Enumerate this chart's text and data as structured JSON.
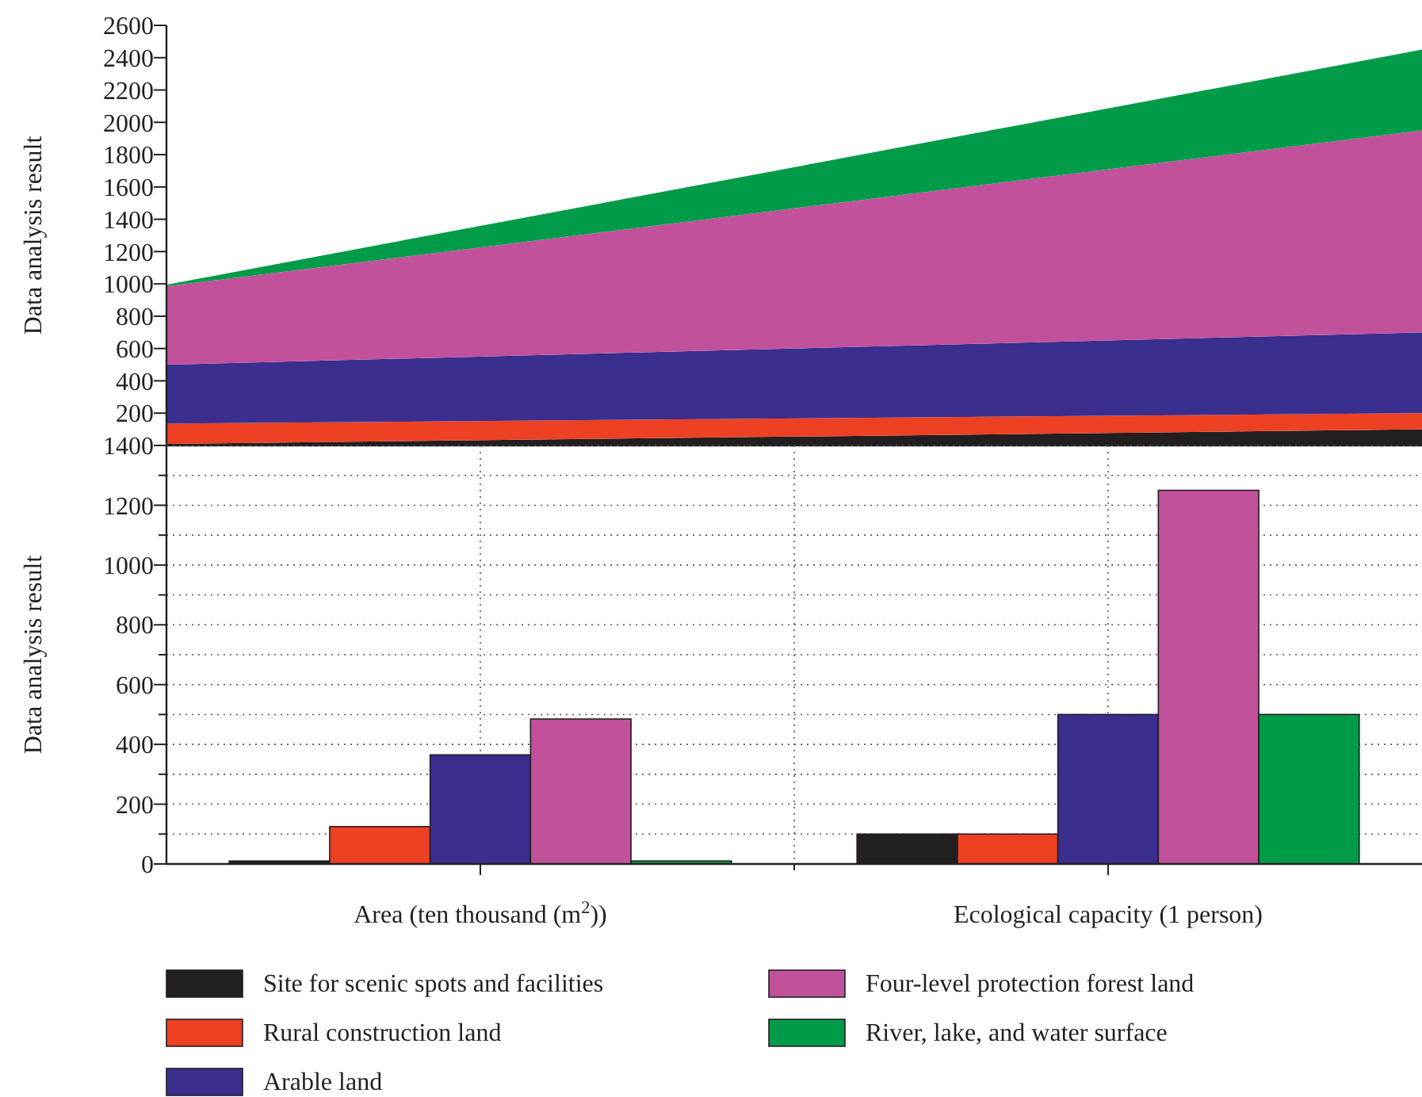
{
  "chart_data": [
    {
      "type": "area",
      "stacked": true,
      "ylabel": "Data analysis result",
      "categories": [
        null,
        null
      ],
      "ylim": [
        0,
        2600
      ],
      "tick_labels": "y",
      "yticks": [
        200,
        400,
        600,
        800,
        1000,
        1200,
        1400,
        1600,
        1800,
        2000,
        2200,
        2400,
        2600
      ],
      "series": [
        {
          "color": "#231f20",
          "values": [
            10,
            100
          ]
        },
        {
          "color": "#ee4023",
          "values": [
            125,
            100
          ]
        },
        {
          "color": "#3a2e8f",
          "values": [
            365,
            500
          ]
        },
        {
          "color": "#c2519b",
          "values": [
            485,
            1250
          ]
        },
        {
          "color": "#009b48",
          "values": [
            10,
            500
          ]
        }
      ]
    },
    {
      "type": "bar",
      "ylabel": "Data analysis result",
      "categories": [
        "Area (ten thousand (m$^{2}$))",
        "Ecological capacity (1 person)"
      ],
      "ylim": [
        0,
        1400
      ],
      "grid": true,
      "legend": "bottom",
      "yticks": [
        0,
        {
          "value": 100,
          "label": null
        },
        200,
        {
          "value": 300,
          "label": null
        },
        400,
        {
          "value": 500,
          "label": null
        },
        600,
        {
          "value": 700,
          "label": null
        },
        800,
        {
          "value": 900,
          "label": null
        },
        1000,
        {
          "value": 1100,
          "label": null
        },
        1200,
        {
          "value": 1300,
          "label": null
        },
        1400
      ],
      "series": [
        {
          "name": "Site for scenic spots and facilities",
          "color": "#231f20",
          "values": [
            10,
            100
          ]
        },
        {
          "name": "Rural construction land",
          "color": "#ee4023",
          "values": [
            125,
            100
          ]
        },
        {
          "name": "Arable land",
          "color": "#3a2e8f",
          "values": [
            365,
            500
          ]
        },
        {
          "name": "Four-level protection forest land",
          "color": "#c2519b",
          "values": [
            485,
            1250
          ]
        },
        {
          "name": "River, lake, and water surface",
          "color": "#009b48",
          "values": [
            10,
            500
          ]
        }
      ]
    }
  ]
}
